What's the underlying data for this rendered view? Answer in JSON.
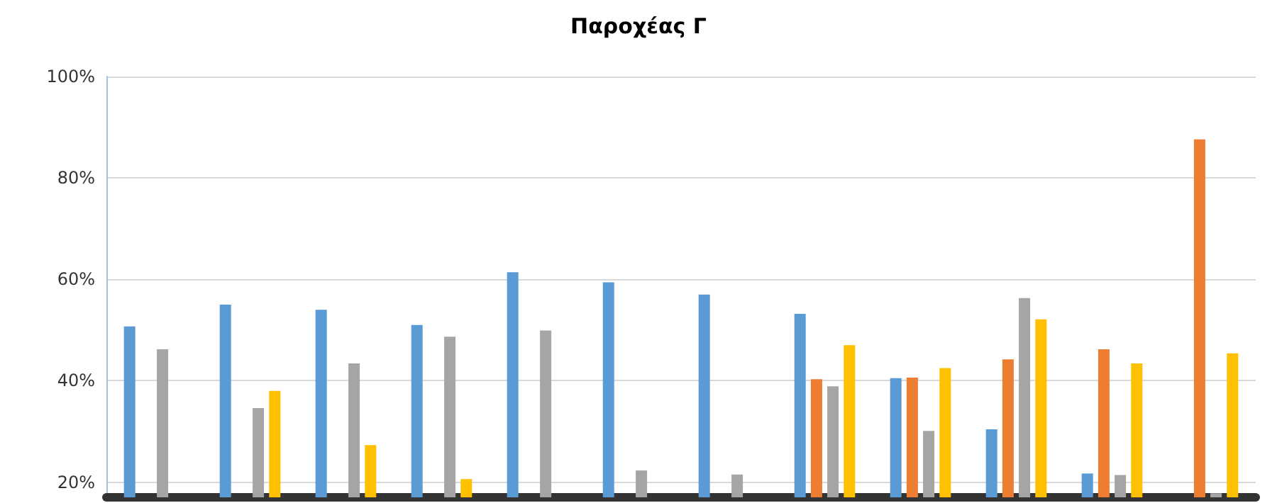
{
  "chart_data": {
    "type": "bar",
    "title": "Παροχέας Γ",
    "categories": [
      null,
      null,
      null,
      null,
      null,
      null,
      null,
      null,
      null,
      null,
      null,
      null
    ],
    "series": [
      {
        "color": "#5b9bd5",
        "values": [
          50.7,
          55,
          54,
          51,
          61.4,
          59.4,
          57,
          53.2,
          40.5,
          30.4,
          21.7,
          null
        ]
      },
      {
        "color": "#ed7d31",
        "values": [
          null,
          null,
          null,
          null,
          null,
          null,
          null,
          40.3,
          40.6,
          44.2,
          46.2,
          87.6
        ]
      },
      {
        "color": "#a5a5a5",
        "values": [
          46.2,
          34.6,
          43.4,
          48.7,
          49.9,
          22.3,
          21.5,
          38.9,
          30.1,
          56.3,
          21.4,
          17.8
        ]
      },
      {
        "color": "#ffc000",
        "values": [
          null,
          38,
          27.3,
          20.6,
          null,
          null,
          null,
          47,
          42.5,
          52.1,
          43.4,
          45.4
        ]
      }
    ],
    "ylim": [
      17,
      100
    ],
    "yticks": [
      {
        "value": 20,
        "label": "20%"
      },
      {
        "value": 40,
        "label": "40%"
      },
      {
        "value": 60,
        "label": "60%"
      },
      {
        "value": 80,
        "label": "80%"
      },
      {
        "value": 100,
        "label": "100%"
      }
    ],
    "grid": "y",
    "tick_labels": "y"
  }
}
